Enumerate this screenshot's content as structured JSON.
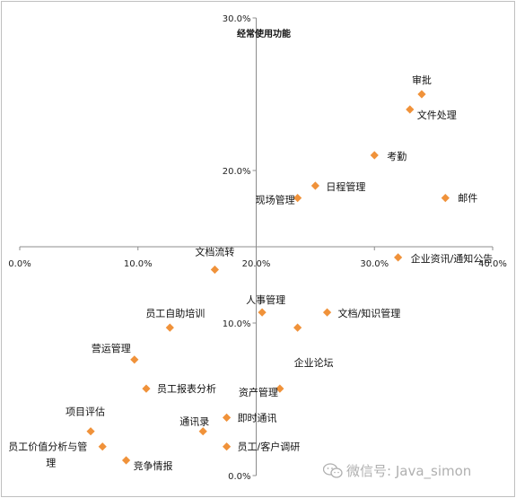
{
  "chart_data": {
    "type": "scatter",
    "title": "经常使用功能",
    "xlabel": "",
    "ylabel": "",
    "xlim": [
      0,
      40
    ],
    "ylim": [
      0,
      30
    ],
    "x_ticks": [
      "0.0%",
      "10.0%",
      "20.0%",
      "30.0%",
      "40.0%"
    ],
    "y_ticks": [
      "0.0%",
      "10.0%",
      "20.0%",
      "30.0%"
    ],
    "marker_color": "#f0923a",
    "grid": false,
    "points": [
      {
        "label": "审批",
        "x": 34.0,
        "y": 25.0
      },
      {
        "label": "文件处理",
        "x": 33.0,
        "y": 24.0
      },
      {
        "label": "考勤",
        "x": 30.0,
        "y": 21.0
      },
      {
        "label": "日程管理",
        "x": 25.0,
        "y": 19.0
      },
      {
        "label": "现场管理",
        "x": 23.5,
        "y": 18.2
      },
      {
        "label": "邮件",
        "x": 36.0,
        "y": 18.2
      },
      {
        "label": "企业资讯/通知公告",
        "x": 32.0,
        "y": 14.3
      },
      {
        "label": "文档流转",
        "x": 16.5,
        "y": 13.5
      },
      {
        "label": "人事管理",
        "x": 20.5,
        "y": 10.7
      },
      {
        "label": "文档/知识管理",
        "x": 26.0,
        "y": 10.7
      },
      {
        "label": "员工自助培训",
        "x": 12.7,
        "y": 9.7
      },
      {
        "label": "企业论坛",
        "x": 23.5,
        "y": 9.7
      },
      {
        "label": "营运管理",
        "x": 9.7,
        "y": 7.6
      },
      {
        "label": "员工报表分析",
        "x": 10.7,
        "y": 5.7
      },
      {
        "label": "资产管理",
        "x": 22.0,
        "y": 5.7
      },
      {
        "label": "即时通讯",
        "x": 17.5,
        "y": 3.8
      },
      {
        "label": "通讯录",
        "x": 15.5,
        "y": 2.9
      },
      {
        "label": "项目评估",
        "x": 6.0,
        "y": 2.9
      },
      {
        "label": "员工价值分析与管理",
        "x": 7.0,
        "y": 1.9
      },
      {
        "label": "员工/客户调研",
        "x": 17.5,
        "y": 1.9
      },
      {
        "label": "竞争情报",
        "x": 9.0,
        "y": 1.0
      }
    ]
  },
  "watermark": {
    "icon": "wechat-icon",
    "text": "微信号: Java_simon"
  }
}
